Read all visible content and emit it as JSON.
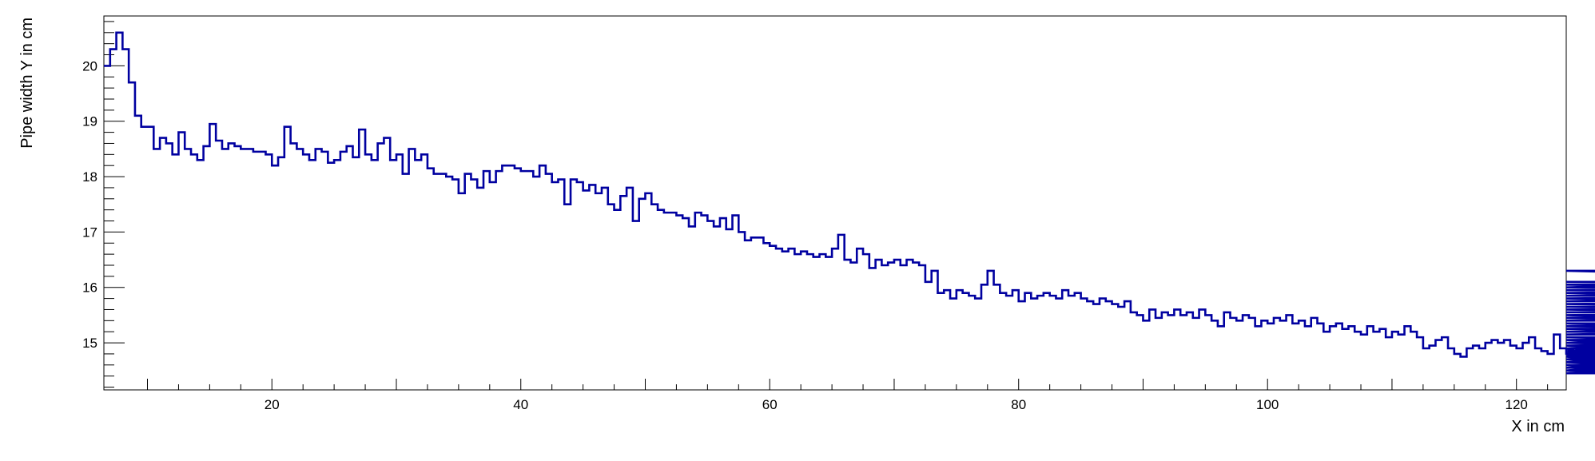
{
  "chart_data": {
    "type": "line",
    "style": "step-histogram",
    "title": "",
    "xlabel": "X in cm",
    "ylabel": "Pipe width Y in cm",
    "xlim": [
      6.5,
      124
    ],
    "ylim": [
      14.15,
      20.9
    ],
    "x_ticks": [
      20,
      40,
      60,
      80,
      100,
      120
    ],
    "y_ticks": [
      15,
      16,
      17,
      18,
      19,
      20
    ],
    "grid": false,
    "legend": "none",
    "line_color": "#0000a0",
    "bin_start": 6.5,
    "bin_width": 0.5,
    "series": [
      {
        "values": [
          20.0,
          20.3,
          20.6,
          20.3,
          19.7,
          19.1,
          18.9,
          18.9,
          18.5,
          18.7,
          18.6,
          18.4,
          18.8,
          18.5,
          18.4,
          18.3,
          18.55,
          18.95,
          18.65,
          18.5,
          18.6,
          18.55,
          18.5,
          18.5,
          18.45,
          18.45,
          18.4,
          18.2,
          18.35,
          18.9,
          18.6,
          18.5,
          18.4,
          18.3,
          18.5,
          18.45,
          18.25,
          18.3,
          18.45,
          18.55,
          18.35,
          18.85,
          18.4,
          18.3,
          18.6,
          18.7,
          18.3,
          18.4,
          18.05,
          18.5,
          18.3,
          18.4,
          18.15,
          18.05,
          18.05,
          18.0,
          17.95,
          17.7,
          18.05,
          17.95,
          17.8,
          18.1,
          17.9,
          18.1,
          18.2,
          18.2,
          18.15,
          18.1,
          18.1,
          18.0,
          18.2,
          18.05,
          17.9,
          17.95,
          17.5,
          17.95,
          17.9,
          17.75,
          17.85,
          17.7,
          17.8,
          17.5,
          17.4,
          17.65,
          17.8,
          17.2,
          17.6,
          17.7,
          17.5,
          17.4,
          17.35,
          17.35,
          17.3,
          17.25,
          17.1,
          17.35,
          17.3,
          17.2,
          17.1,
          17.25,
          17.05,
          17.3,
          17.0,
          16.85,
          16.9,
          16.9,
          16.8,
          16.75,
          16.7,
          16.65,
          16.7,
          16.6,
          16.65,
          16.6,
          16.55,
          16.6,
          16.55,
          16.7,
          16.95,
          16.5,
          16.45,
          16.7,
          16.6,
          16.35,
          16.5,
          16.4,
          16.45,
          16.5,
          16.4,
          16.5,
          16.45,
          16.4,
          16.1,
          16.3,
          15.9,
          15.95,
          15.8,
          15.95,
          15.9,
          15.85,
          15.8,
          16.05,
          16.3,
          16.05,
          15.9,
          15.85,
          15.95,
          15.75,
          15.9,
          15.8,
          15.85,
          15.9,
          15.85,
          15.8,
          15.95,
          15.85,
          15.9,
          15.8,
          15.75,
          15.7,
          15.8,
          15.75,
          15.7,
          15.65,
          15.75,
          15.55,
          15.5,
          15.4,
          15.6,
          15.45,
          15.55,
          15.5,
          15.6,
          15.5,
          15.55,
          15.45,
          15.6,
          15.5,
          15.4,
          15.3,
          15.55,
          15.45,
          15.4,
          15.5,
          15.45,
          15.3,
          15.4,
          15.35,
          15.45,
          15.4,
          15.5,
          15.35,
          15.4,
          15.3,
          15.45,
          15.35,
          15.2,
          15.3,
          15.35,
          15.25,
          15.3,
          15.2,
          15.15,
          15.3,
          15.2,
          15.25,
          15.1,
          15.2,
          15.15,
          15.3,
          15.2,
          15.1,
          14.9,
          14.95,
          15.05,
          15.1,
          14.9,
          14.8,
          14.75,
          14.9,
          14.95,
          14.9,
          15.0,
          15.05,
          15.0,
          15.05,
          14.95,
          14.9,
          15.0,
          15.1,
          14.9,
          14.85,
          14.8,
          15.15,
          14.9,
          14.8,
          14.75,
          14.8,
          14.9,
          14.75,
          14.7,
          14.8,
          14.7,
          14.65,
          14.6,
          14.5,
          14.45,
          14.55,
          14.6,
          14.7,
          14.6,
          14.55,
          14.7,
          14.5,
          14.65,
          14.8,
          14.7,
          14.75,
          14.9,
          14.8,
          14.95,
          14.8,
          14.7,
          14.85,
          14.9,
          14.7,
          14.95,
          15.0,
          15.05,
          14.9,
          14.75,
          15.0,
          14.9,
          15.05,
          15.05,
          15.1,
          15.0,
          15.0,
          15.05,
          14.95,
          14.85,
          14.9,
          15.0,
          14.85,
          14.8,
          15.0,
          15.15,
          15.25,
          15.35,
          15.2,
          15.15,
          15.25,
          15.3,
          15.2,
          15.3,
          15.5,
          15.3,
          15.25,
          15.3,
          15.35,
          15.2,
          15.45,
          15.4,
          15.45,
          15.4,
          15.45,
          15.5,
          15.4,
          15.6,
          15.55,
          15.6,
          15.45,
          15.7,
          15.75,
          15.8,
          15.5,
          15.6,
          15.7,
          15.8,
          15.65,
          15.7,
          15.6,
          15.85,
          15.9,
          16.05,
          15.85,
          16.1,
          16.0,
          16.3,
          16.05,
          16.0,
          15.95,
          15.9,
          15.85,
          16.0,
          15.9,
          15.8,
          15.95,
          15.85,
          15.8,
          15.95,
          16.1,
          16.1
        ]
      }
    ]
  }
}
